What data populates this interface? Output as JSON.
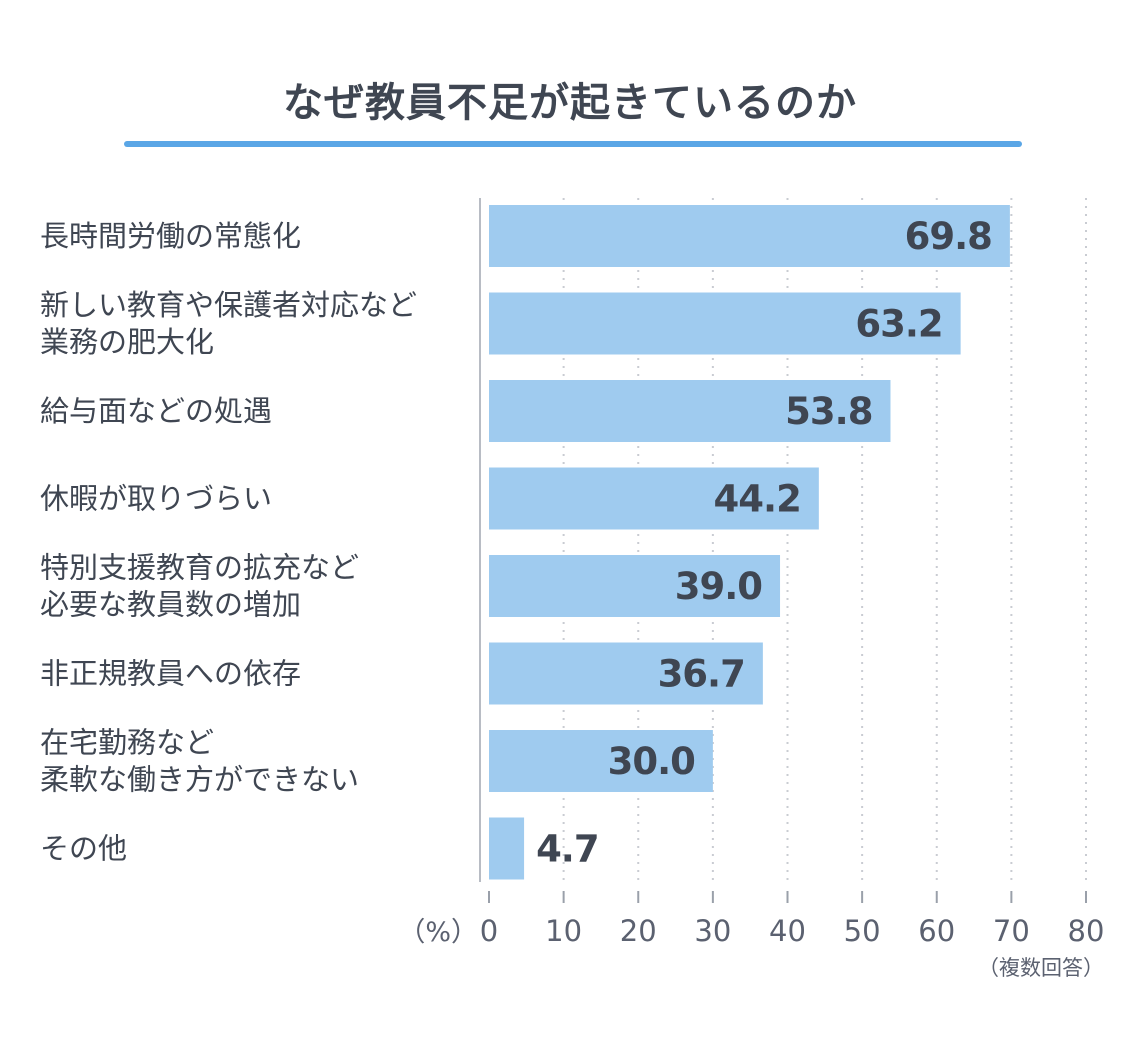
{
  "chart_data": {
    "type": "bar",
    "orientation": "horizontal",
    "title": "なぜ教員不足が起きているのか",
    "categories": [
      [
        "長時間労働の常態化"
      ],
      [
        "新しい教育や保護者対応など",
        "業務の肥大化"
      ],
      [
        "給与面などの処遇"
      ],
      [
        "休暇が取りづらい"
      ],
      [
        "特別支援教育の拡充など",
        "必要な教員数の増加"
      ],
      [
        "非正規教員への依存"
      ],
      [
        "在宅勤務など",
        "柔軟な働き方ができない"
      ],
      [
        "その他"
      ]
    ],
    "values": [
      69.8,
      63.2,
      53.8,
      44.2,
      39.0,
      36.7,
      30.0,
      4.7
    ],
    "value_labels": [
      "69.8",
      "63.2",
      "53.8",
      "44.2",
      "39.0",
      "36.7",
      "30.0",
      "4.7"
    ],
    "xlim": [
      0,
      80
    ],
    "xticks": [
      "0",
      "10",
      "20",
      "30",
      "40",
      "50",
      "60",
      "70",
      "80"
    ],
    "unit": "（%）",
    "note": "（複数回答）",
    "grid": "vertical dotted",
    "bar_color": "#9fcbef",
    "accent_color": "#5aa6e6"
  }
}
